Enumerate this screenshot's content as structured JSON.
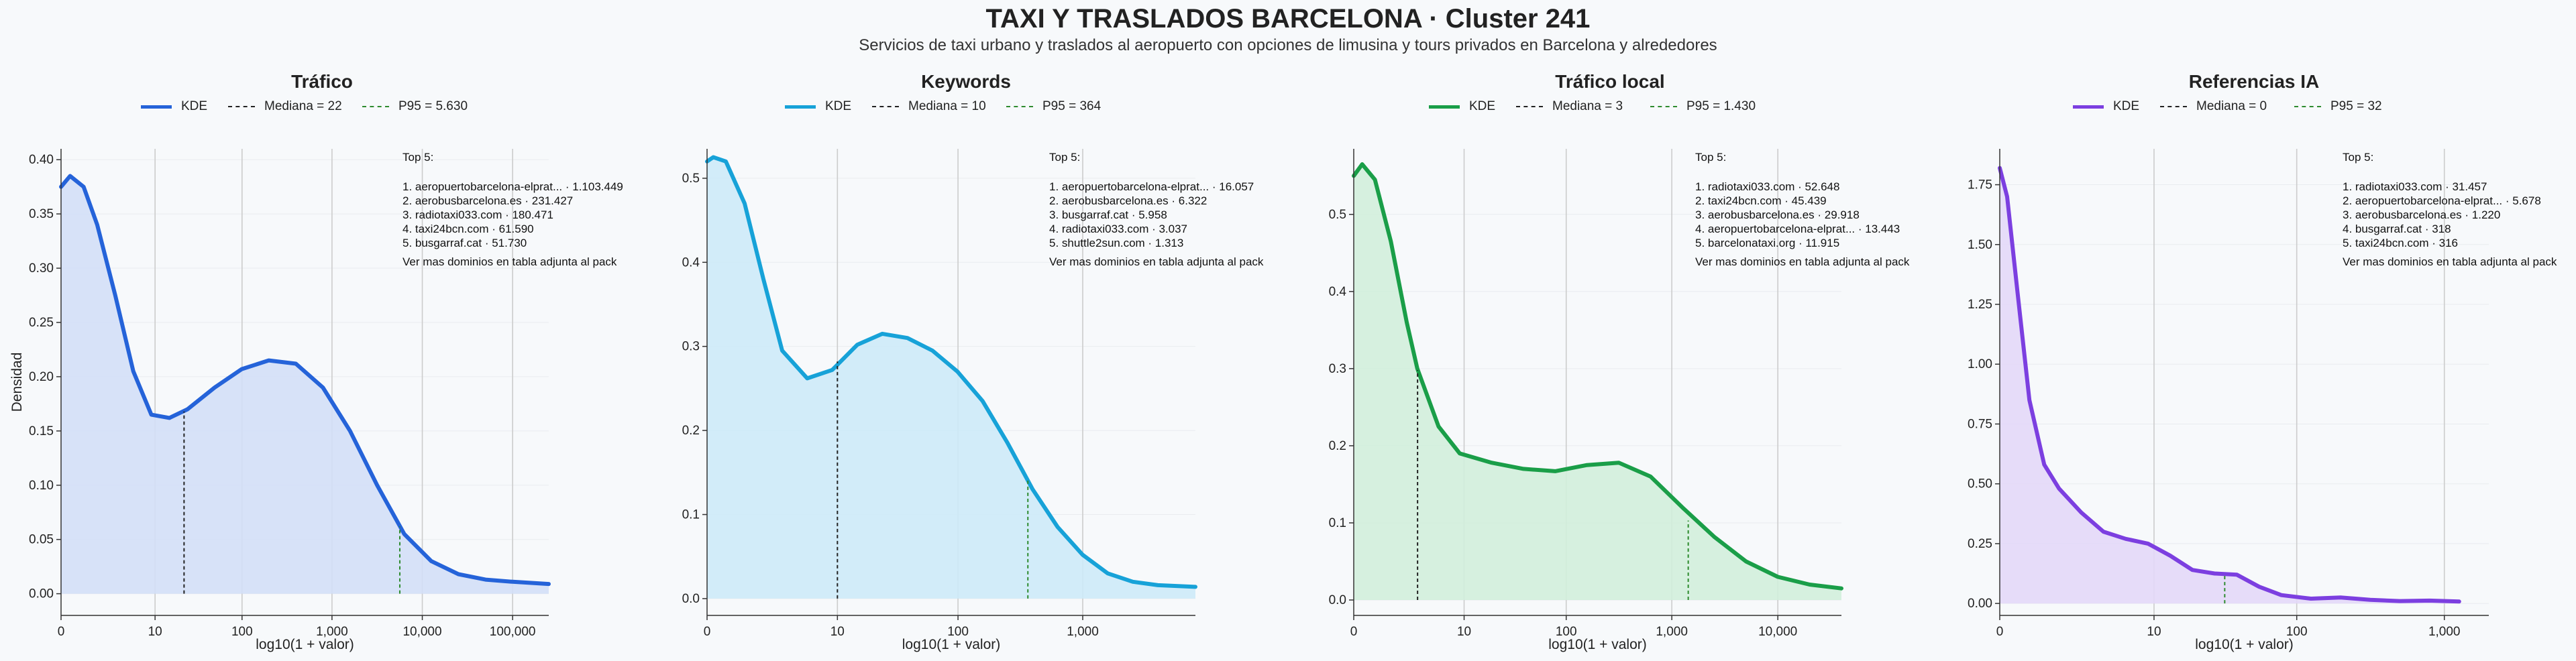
{
  "title": "TAXI Y TRASLADOS BARCELONA · Cluster 241",
  "subtitle": "Servicios de taxi urbano y traslados al aeropuerto con opciones de limusina y tours privados en Barcelona y alrededores",
  "legend_labels": {
    "kde": "KDE"
  },
  "colors": {
    "median_line": "#222222",
    "p95_line": "#2e8b2e",
    "grid": "#cccccc",
    "axis": "#333333"
  },
  "chart_data": [
    {
      "type": "area",
      "title": "Tráfico",
      "color": "#2563d9",
      "fill": "#d3dff7",
      "xlabel": "log10(1 + valor)",
      "ylabel": "Densidad",
      "xlim": [
        0,
        5.4
      ],
      "ylim": [
        -0.02,
        0.41
      ],
      "x_ticks": [
        {
          "x": 0,
          "label": "0"
        },
        {
          "x": 1.041,
          "label": "10"
        },
        {
          "x": 2.004,
          "label": "100"
        },
        {
          "x": 3.0,
          "label": "1,000"
        },
        {
          "x": 4.0,
          "label": "10,000"
        },
        {
          "x": 5.0,
          "label": "100,000"
        }
      ],
      "y_ticks": [
        {
          "y": 0.0,
          "label": "0.00"
        },
        {
          "y": 0.05,
          "label": "0.05"
        },
        {
          "y": 0.1,
          "label": "0.10"
        },
        {
          "y": 0.15,
          "label": "0.15"
        },
        {
          "y": 0.2,
          "label": "0.20"
        },
        {
          "y": 0.25,
          "label": "0.25"
        },
        {
          "y": 0.3,
          "label": "0.30"
        },
        {
          "y": 0.35,
          "label": "0.35"
        },
        {
          "y": 0.4,
          "label": "0.40"
        }
      ],
      "kde_x": [
        0,
        0.1,
        0.25,
        0.4,
        0.6,
        0.8,
        1.0,
        1.2,
        1.4,
        1.7,
        2.0,
        2.3,
        2.6,
        2.9,
        3.2,
        3.5,
        3.8,
        4.1,
        4.4,
        4.7,
        5.0,
        5.4
      ],
      "kde_y": [
        0.375,
        0.385,
        0.375,
        0.34,
        0.275,
        0.205,
        0.165,
        0.162,
        0.17,
        0.19,
        0.207,
        0.215,
        0.212,
        0.19,
        0.15,
        0.1,
        0.055,
        0.03,
        0.018,
        0.013,
        0.011,
        0.009
      ],
      "median": {
        "label": "Mediana = 22",
        "x": 1.362,
        "y": 0.168
      },
      "p95": {
        "label": "P95 = 5.630",
        "x": 3.751,
        "y": 0.062
      },
      "top_title": "Top 5:",
      "top_items": [
        "1. aeropuertobarcelona-elprat... · 1.103.449",
        "2. aerobusbarcelona.es · 231.427",
        "3. radiotaxi033.com · 180.471",
        "4. taxi24bcn.com · 61.590",
        "5. busgarraf.cat · 51.730"
      ],
      "top_note": "Ver mas dominios en tabla adjunta al pack"
    },
    {
      "type": "area",
      "title": "Keywords",
      "color": "#17a2d8",
      "fill": "#cdeaf8",
      "xlabel": "log10(1 + valor)",
      "ylabel": "",
      "xlim": [
        0,
        3.9
      ],
      "ylim": [
        -0.02,
        0.535
      ],
      "x_ticks": [
        {
          "x": 0,
          "label": "0"
        },
        {
          "x": 1.041,
          "label": "10"
        },
        {
          "x": 2.004,
          "label": "100"
        },
        {
          "x": 3.0,
          "label": "1,000"
        }
      ],
      "y_ticks": [
        {
          "y": 0.0,
          "label": "0.0"
        },
        {
          "y": 0.1,
          "label": "0.1"
        },
        {
          "y": 0.2,
          "label": "0.2"
        },
        {
          "y": 0.3,
          "label": "0.3"
        },
        {
          "y": 0.4,
          "label": "0.4"
        },
        {
          "y": 0.5,
          "label": "0.5"
        }
      ],
      "kde_x": [
        0,
        0.05,
        0.15,
        0.3,
        0.45,
        0.6,
        0.8,
        1.0,
        1.2,
        1.4,
        1.6,
        1.8,
        2.0,
        2.2,
        2.4,
        2.6,
        2.8,
        3.0,
        3.2,
        3.4,
        3.6,
        3.9
      ],
      "kde_y": [
        0.52,
        0.525,
        0.52,
        0.47,
        0.38,
        0.295,
        0.262,
        0.272,
        0.302,
        0.315,
        0.31,
        0.295,
        0.27,
        0.235,
        0.185,
        0.13,
        0.085,
        0.052,
        0.03,
        0.02,
        0.016,
        0.014
      ],
      "median": {
        "label": "Mediana = 10",
        "x": 1.041,
        "y": 0.282
      },
      "p95": {
        "label": "P95 = 364",
        "x": 2.562,
        "y": 0.142
      },
      "top_title": "Top 5:",
      "top_items": [
        "1. aeropuertobarcelona-elprat... · 16.057",
        "2. aerobusbarcelona.es · 6.322",
        "3. busgarraf.cat · 5.958",
        "4. radiotaxi033.com · 3.037",
        "5. shuttle2sun.com · 1.313"
      ],
      "top_note": "Ver mas dominios en tabla adjunta al pack"
    },
    {
      "type": "area",
      "title": "Tráfico local",
      "color": "#1a9e48",
      "fill": "#d2eedc",
      "xlabel": "log10(1 + valor)",
      "ylabel": "",
      "xlim": [
        0,
        4.6
      ],
      "ylim": [
        -0.02,
        0.585
      ],
      "x_ticks": [
        {
          "x": 0,
          "label": "0"
        },
        {
          "x": 1.041,
          "label": "10"
        },
        {
          "x": 2.004,
          "label": "100"
        },
        {
          "x": 3.0,
          "label": "1,000"
        },
        {
          "x": 4.0,
          "label": "10,000"
        }
      ],
      "y_ticks": [
        {
          "y": 0.0,
          "label": "0.0"
        },
        {
          "y": 0.1,
          "label": "0.1"
        },
        {
          "y": 0.2,
          "label": "0.2"
        },
        {
          "y": 0.3,
          "label": "0.3"
        },
        {
          "y": 0.4,
          "label": "0.4"
        },
        {
          "y": 0.5,
          "label": "0.5"
        }
      ],
      "kde_x": [
        0,
        0.08,
        0.2,
        0.35,
        0.5,
        0.6,
        0.8,
        1.0,
        1.3,
        1.6,
        1.9,
        2.2,
        2.5,
        2.8,
        3.1,
        3.4,
        3.7,
        4.0,
        4.3,
        4.6
      ],
      "kde_y": [
        0.55,
        0.565,
        0.545,
        0.465,
        0.36,
        0.3,
        0.225,
        0.19,
        0.178,
        0.17,
        0.167,
        0.175,
        0.178,
        0.16,
        0.12,
        0.082,
        0.05,
        0.03,
        0.02,
        0.015
      ],
      "median": {
        "label": "Mediana = 3",
        "x": 0.602,
        "y": 0.298
      },
      "p95": {
        "label": "P95 = 1.430",
        "x": 3.155,
        "y": 0.103
      },
      "top_title": "Top 5:",
      "top_items": [
        "1. radiotaxi033.com · 52.648",
        "2. taxi24bcn.com · 45.439",
        "3. aerobusbarcelona.es · 29.918",
        "4. aeropuertobarcelona-elprat... · 13.443",
        "5. barcelonataxi.org · 11.915"
      ],
      "top_note": "Ver mas dominios en tabla adjunta al pack"
    },
    {
      "type": "area",
      "title": "Referencias IA",
      "color": "#7c3fe0",
      "fill": "#e3d8f8",
      "xlabel": "log10(1 + valor)",
      "ylabel": "",
      "xlim": [
        0,
        3.3
      ],
      "ylim": [
        -0.05,
        1.9
      ],
      "x_ticks": [
        {
          "x": 0,
          "label": "0"
        },
        {
          "x": 1.041,
          "label": "10"
        },
        {
          "x": 2.004,
          "label": "100"
        },
        {
          "x": 3.0,
          "label": "1,000"
        }
      ],
      "y_ticks": [
        {
          "y": 0.0,
          "label": "0.00"
        },
        {
          "y": 0.25,
          "label": "0.25"
        },
        {
          "y": 0.5,
          "label": "0.50"
        },
        {
          "y": 0.75,
          "label": "0.75"
        },
        {
          "y": 1.0,
          "label": "1.00"
        },
        {
          "y": 1.25,
          "label": "1.25"
        },
        {
          "y": 1.5,
          "label": "1.50"
        },
        {
          "y": 1.75,
          "label": "1.75"
        }
      ],
      "kde_x": [
        0,
        0.05,
        0.12,
        0.2,
        0.3,
        0.4,
        0.55,
        0.7,
        0.85,
        1.0,
        1.15,
        1.3,
        1.45,
        1.6,
        1.75,
        1.9,
        2.1,
        2.3,
        2.5,
        2.7,
        2.9,
        3.1
      ],
      "kde_y": [
        1.82,
        1.7,
        1.3,
        0.85,
        0.58,
        0.48,
        0.38,
        0.3,
        0.27,
        0.25,
        0.2,
        0.14,
        0.125,
        0.12,
        0.07,
        0.035,
        0.02,
        0.025,
        0.015,
        0.01,
        0.012,
        0.008
      ],
      "median": {
        "label": "Mediana = 0",
        "x": 0.0,
        "y": 0.0
      },
      "p95": {
        "label": "P95 = 32",
        "x": 1.518,
        "y": 0.12
      },
      "top_title": "Top 5:",
      "top_items": [
        "1. radiotaxi033.com · 31.457",
        "2. aeropuertobarcelona-elprat... · 5.678",
        "3. aerobusbarcelona.es · 1.220",
        "4. busgarraf.cat · 318",
        "5. taxi24bcn.com · 316"
      ],
      "top_note": "Ver mas dominios en tabla adjunta al pack"
    }
  ]
}
